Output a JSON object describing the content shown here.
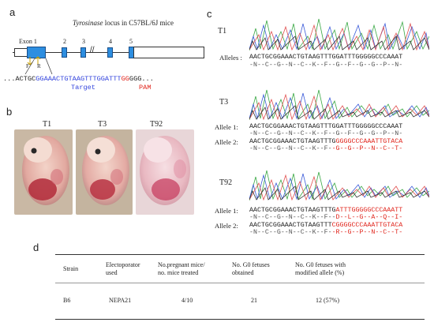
{
  "panels": {
    "a": "a",
    "b": "b",
    "c": "c",
    "d": "d"
  },
  "panel_a": {
    "locus_italic": "Tyrosinase",
    "locus_rest": " locus in C57BL/6J mice",
    "exon1_label": "Exon 1",
    "exon_numbers": [
      "2",
      "3",
      "4",
      "5"
    ],
    "primer_f": "F",
    "primer_r": "R",
    "seq_prefix": "...ACTGC",
    "seq_target": "GGAAACTGTAAGTTTGGATTT",
    "seq_pam": "GG",
    "seq_suffix": "GGG...",
    "target_label": "Target",
    "pam_label": "PAM"
  },
  "panel_b": {
    "embryos": [
      {
        "label": "T1"
      },
      {
        "label": "T3"
      },
      {
        "label": "T92"
      }
    ]
  },
  "panel_c": {
    "samples": [
      {
        "name": "T1",
        "rows": [
          {
            "label": "Alleles :",
            "seq_black": "AACTGCGGAAACTGTAAGTTTGGATTTGGGGGCCCAAAT",
            "seq_red": "",
            "aa_black": "-N--C--G--N--C--K--F--G--F--G--G--P--N-",
            "aa_red": ""
          }
        ]
      },
      {
        "name": "T3",
        "rows": [
          {
            "label": "Allele 1:",
            "seq_black": "AACTGCGGAAACTGTAAGTTTGGATTTGGGGGCCCAAAT",
            "seq_red": "",
            "aa_black": "-N--C--G--N--C--K--F--G--F--G--G--P--N-",
            "aa_red": ""
          },
          {
            "label": "Allele 2:",
            "seq_black": "AACTGCGGAAACTGTAAGTTTG",
            "seq_red": "GGGGCCCAAATTGTACA",
            "aa_black": "-N--C--G--N--C--K--F-",
            "aa_red": "-G--G--P--N--C--T-"
          }
        ]
      },
      {
        "name": "T92",
        "rows": [
          {
            "label": "Allele 1:",
            "seq_black": "AACTGCGGAAACTGTAAGTTTG",
            "seq_red": "ATTTGGGGGCCCAAATT",
            "aa_black": "-N--C--G--N--C--K--F--",
            "aa_red": "D--L--G--A--Q--I-"
          },
          {
            "label": "Allele 2:",
            "seq_black": "AACTGCGGAAACTGTAAGTTT",
            "seq_red": "CGGGGCCCAAATTGTACA",
            "aa_black": "-N--C--G--N--C--K--F-",
            "aa_red": "-R--G--P--N--C--T-"
          }
        ]
      }
    ]
  },
  "panel_d": {
    "headers": [
      "Strain",
      "Electoporator\nused",
      "No.pregnant mice/\nno. mice treated",
      "No. G0 fetuses\nobtained",
      "No. G0 fetuses  with\nmodified allele (%)"
    ],
    "rows": [
      [
        "B6",
        "NEPA21",
        "4/10",
        "21",
        "12 (57%)"
      ]
    ]
  },
  "colors": {
    "exon": "#2d8ee0",
    "target": "#3344dd",
    "pam": "#e0241b",
    "mutation": "#e0241b",
    "trace_green": "#3aa845",
    "trace_blue": "#3b5bd9",
    "trace_red": "#e05050",
    "trace_black": "#333333"
  }
}
